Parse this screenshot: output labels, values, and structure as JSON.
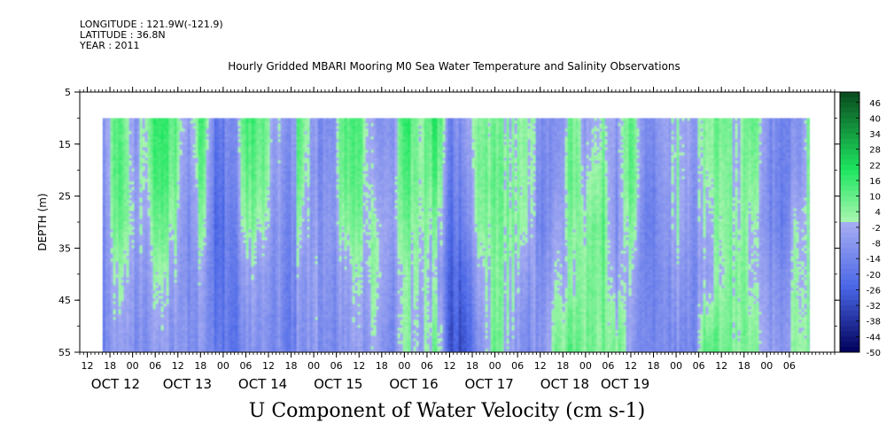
{
  "header": {
    "longitude": "LONGITUDE : 121.9W(-121.9)",
    "latitude": "LATITUDE : 36.8N",
    "year": "YEAR : 2011"
  },
  "chart_data": {
    "type": "heatmap",
    "title": "Hourly Gridded MBARI Mooring M0 Sea Water Temperature and Salinity Observations",
    "xlabel": "",
    "ylabel": "DEPTH (m)",
    "footer_label": "U Component of Water Velocity (cm s-1)",
    "ylim": [
      55,
      5
    ],
    "yticks": [
      "5",
      "15",
      "25",
      "35",
      "45",
      "55"
    ],
    "data_depth_range_m": [
      10,
      55
    ],
    "xlim_hours": [
      0,
      200
    ],
    "x_hour_ticks": [
      {
        "label": "12",
        "h": 2
      },
      {
        "label": "18",
        "h": 8
      },
      {
        "label": "00",
        "h": 14
      },
      {
        "label": "06",
        "h": 20
      },
      {
        "label": "12",
        "h": 26
      },
      {
        "label": "18",
        "h": 32
      },
      {
        "label": "00",
        "h": 38
      },
      {
        "label": "06",
        "h": 44
      },
      {
        "label": "12",
        "h": 50
      },
      {
        "label": "18",
        "h": 56
      },
      {
        "label": "00",
        "h": 62
      },
      {
        "label": "06",
        "h": 68
      },
      {
        "label": "12",
        "h": 74
      },
      {
        "label": "18",
        "h": 80
      },
      {
        "label": "00",
        "h": 86
      },
      {
        "label": "06",
        "h": 92
      },
      {
        "label": "12",
        "h": 98
      },
      {
        "label": "18",
        "h": 104
      },
      {
        "label": "00",
        "h": 110
      },
      {
        "label": "06",
        "h": 116
      },
      {
        "label": "12",
        "h": 122
      },
      {
        "label": "18",
        "h": 128
      },
      {
        "label": "00",
        "h": 134
      },
      {
        "label": "06",
        "h": 140
      },
      {
        "label": "12",
        "h": 146
      },
      {
        "label": "18",
        "h": 152
      },
      {
        "label": "00",
        "h": 158
      },
      {
        "label": "06",
        "h": 164
      },
      {
        "label": "12",
        "h": 170
      },
      {
        "label": "18",
        "h": 176
      },
      {
        "label": "00",
        "h": 182
      },
      {
        "label": "06",
        "h": 188
      }
    ],
    "x_day_labels": [
      {
        "label": "OCT 12",
        "h": 3
      },
      {
        "label": "OCT 13",
        "h": 22
      },
      {
        "label": "OCT 14",
        "h": 42
      },
      {
        "label": "OCT 15",
        "h": 62
      },
      {
        "label": "OCT 16",
        "h": 82
      },
      {
        "label": "OCT 17",
        "h": 102
      },
      {
        "label": "OCT 18",
        "h": 122
      },
      {
        "label": "OCT 19",
        "h": 138
      }
    ],
    "data_start_hour": 6,
    "data_end_hour": 193.5,
    "colorbar": {
      "min": -50,
      "max": 50,
      "labels": [
        "46",
        "40",
        "34",
        "28",
        "22",
        "16",
        "10",
        "4",
        "-2",
        "-8",
        "-14",
        "-20",
        "-26",
        "-32",
        "-38",
        "-44",
        "-50"
      ]
    },
    "colors": {
      "positive_light": "#aaf5b0",
      "positive_mid": "#1ee660",
      "positive_dark": "#0a4a1e",
      "negative_light": "#a8aef2",
      "negative_mid": "#4a66e6",
      "negative_dark": "#00005a"
    },
    "profiles": [
      {
        "h": 6,
        "values": [
          -6,
          -8,
          -10,
          -12,
          -14
        ]
      },
      {
        "h": 10,
        "values": [
          12,
          14,
          10,
          2,
          -6
        ]
      },
      {
        "h": 14,
        "values": [
          -8,
          -6,
          -4,
          -8,
          -12
        ]
      },
      {
        "h": 18,
        "values": [
          6,
          4,
          -2,
          -6,
          -10
        ]
      },
      {
        "h": 20,
        "values": [
          18,
          16,
          10,
          2,
          -6
        ]
      },
      {
        "h": 24,
        "values": [
          14,
          12,
          6,
          -2,
          -8
        ]
      },
      {
        "h": 28,
        "values": [
          -4,
          -8,
          -10,
          -10,
          -8
        ]
      },
      {
        "h": 32,
        "values": [
          14,
          10,
          4,
          -4,
          -8
        ]
      },
      {
        "h": 36,
        "values": [
          -18,
          -20,
          -22,
          -20,
          -16
        ]
      },
      {
        "h": 40,
        "values": [
          -12,
          -14,
          -16,
          -18,
          -20
        ]
      },
      {
        "h": 44,
        "values": [
          16,
          12,
          6,
          -4,
          -10
        ]
      },
      {
        "h": 48,
        "values": [
          12,
          10,
          4,
          -4,
          -8
        ]
      },
      {
        "h": 52,
        "values": [
          -4,
          -6,
          -8,
          -10,
          -12
        ]
      },
      {
        "h": 56,
        "values": [
          -10,
          -12,
          -14,
          -16,
          -18
        ]
      },
      {
        "h": 58,
        "values": [
          14,
          12,
          4,
          -4,
          -8
        ]
      },
      {
        "h": 62,
        "values": [
          -8,
          -10,
          -8,
          -6,
          -8
        ]
      },
      {
        "h": 66,
        "values": [
          -14,
          -12,
          -10,
          -12,
          -14
        ]
      },
      {
        "h": 70,
        "values": [
          16,
          14,
          8,
          -2,
          -6
        ]
      },
      {
        "h": 74,
        "values": [
          10,
          8,
          4,
          -2,
          -8
        ]
      },
      {
        "h": 78,
        "values": [
          -6,
          -4,
          2,
          4,
          -2
        ]
      },
      {
        "h": 82,
        "values": [
          -10,
          -8,
          -6,
          -10,
          -14
        ]
      },
      {
        "h": 86,
        "values": [
          18,
          14,
          8,
          2,
          4
        ]
      },
      {
        "h": 90,
        "values": [
          4,
          6,
          4,
          2,
          -4
        ]
      },
      {
        "h": 94,
        "values": [
          18,
          12,
          4,
          -4,
          8
        ]
      },
      {
        "h": 98,
        "values": [
          -16,
          -18,
          -22,
          -26,
          -30
        ]
      },
      {
        "h": 102,
        "values": [
          -6,
          -10,
          -14,
          -22,
          -30
        ]
      },
      {
        "h": 106,
        "values": [
          4,
          6,
          4,
          -4,
          -10
        ]
      },
      {
        "h": 110,
        "values": [
          6,
          8,
          6,
          4,
          8
        ]
      },
      {
        "h": 114,
        "values": [
          2,
          4,
          6,
          2,
          -4
        ]
      },
      {
        "h": 118,
        "values": [
          6,
          4,
          2,
          -6,
          -12
        ]
      },
      {
        "h": 122,
        "values": [
          -10,
          -12,
          -14,
          -10,
          -8
        ]
      },
      {
        "h": 126,
        "values": [
          -14,
          -12,
          -8,
          -4,
          4
        ]
      },
      {
        "h": 130,
        "values": [
          8,
          10,
          6,
          2,
          12
        ]
      },
      {
        "h": 134,
        "values": [
          -8,
          -4,
          2,
          4,
          6
        ]
      },
      {
        "h": 138,
        "values": [
          2,
          6,
          10,
          8,
          6
        ]
      },
      {
        "h": 142,
        "values": [
          -6,
          -8,
          -10,
          -6,
          8
        ]
      },
      {
        "h": 146,
        "values": [
          10,
          12,
          6,
          -2,
          -8
        ]
      },
      {
        "h": 150,
        "values": [
          -12,
          -14,
          -16,
          -14,
          -12
        ]
      },
      {
        "h": 154,
        "values": [
          -8,
          -10,
          -12,
          -14,
          -14
        ]
      },
      {
        "h": 158,
        "values": [
          2,
          4,
          2,
          -4,
          -10
        ]
      },
      {
        "h": 162,
        "values": [
          -4,
          -6,
          -8,
          -10,
          -12
        ]
      },
      {
        "h": 166,
        "values": [
          6,
          4,
          0,
          -4,
          14
        ]
      },
      {
        "h": 170,
        "values": [
          8,
          6,
          4,
          2,
          8
        ]
      },
      {
        "h": 174,
        "values": [
          -2,
          0,
          2,
          6,
          4
        ]
      },
      {
        "h": 178,
        "values": [
          14,
          10,
          4,
          2,
          10
        ]
      },
      {
        "h": 182,
        "values": [
          -10,
          -12,
          -12,
          -8,
          -6
        ]
      },
      {
        "h": 186,
        "values": [
          -14,
          -16,
          -16,
          -12,
          -8
        ]
      },
      {
        "h": 190,
        "values": [
          -8,
          -6,
          2,
          4,
          6
        ]
      },
      {
        "h": 193,
        "values": [
          6,
          4,
          2,
          2,
          4
        ]
      }
    ]
  }
}
